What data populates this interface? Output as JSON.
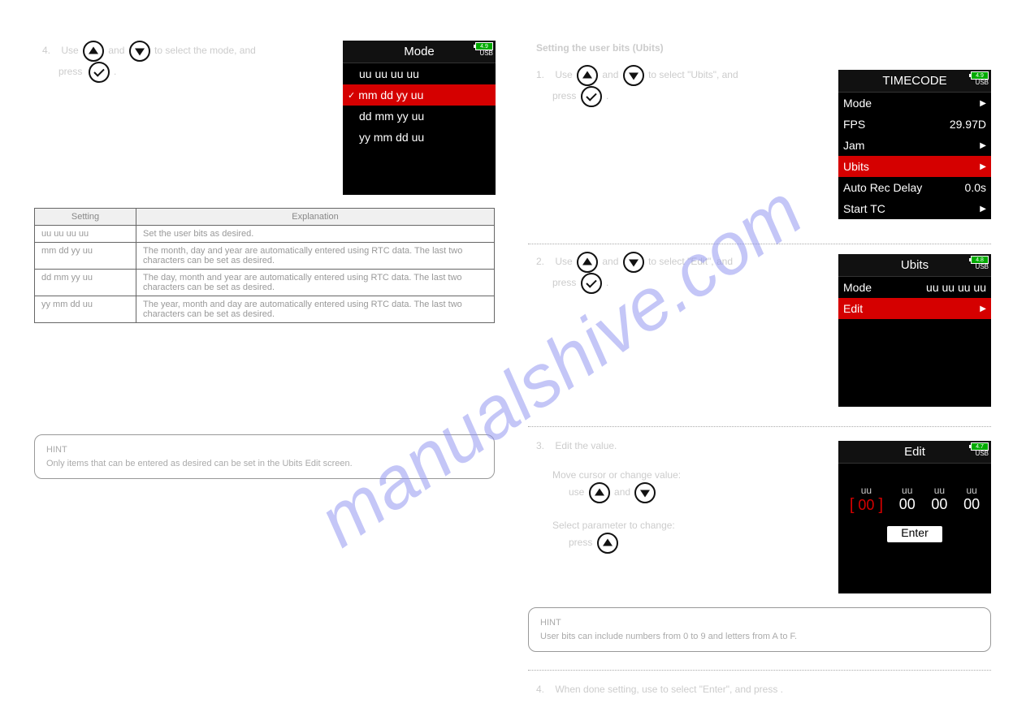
{
  "watermark": "manualshive.com",
  "left": {
    "step4": {
      "prefix": "4.",
      "line1_a": "Use ",
      "line1_b": " and ",
      "line1_c": " to select the mode, and",
      "line2_a": "press ",
      "line2_b": "."
    },
    "lcd_mode": {
      "title": "Mode",
      "battery": "4.9",
      "usb": "USB",
      "items": [
        {
          "label": "uu uu uu uu",
          "selected": false
        },
        {
          "label": "mm dd yy uu",
          "selected": true
        },
        {
          "label": "dd mm yy uu",
          "selected": false
        },
        {
          "label": "yy mm dd uu",
          "selected": false
        }
      ]
    },
    "table": {
      "headers": [
        "Setting",
        "Explanation"
      ],
      "rows": [
        [
          "uu uu uu uu",
          "Set the user bits as desired."
        ],
        [
          "mm dd yy uu",
          "The month, day and year are automatically entered using RTC data. The last two characters can be set as desired."
        ],
        [
          "dd mm yy uu",
          "The day, month and year are automatically entered using RTC data. The last two characters can be set as desired."
        ],
        [
          "yy mm dd uu",
          "The year, month and day are automatically entered using RTC data. The last two characters can be set as desired."
        ]
      ]
    },
    "hint": {
      "label": "HINT",
      "text": "Only items that can be entered as desired can be set in the Ubits Edit screen."
    }
  },
  "right": {
    "section_title": "Setting the user bits (Ubits)",
    "step1": {
      "prefix": "1.",
      "line1_a": "Use ",
      "line1_b": " and ",
      "line1_c": " to select \"Ubits\", and",
      "line2_a": "press ",
      "line2_b": "."
    },
    "lcd_timecode": {
      "title": "TIMECODE",
      "battery": "4.9",
      "usb": "USB",
      "rows": [
        {
          "label": "Mode",
          "value": "",
          "arrow": true,
          "sel": false
        },
        {
          "label": "FPS",
          "value": "29.97D",
          "arrow": false,
          "sel": false
        },
        {
          "label": "Jam",
          "value": "",
          "arrow": true,
          "sel": false
        },
        {
          "label": "Ubits",
          "value": "",
          "arrow": true,
          "sel": true
        },
        {
          "label": "Auto Rec Delay",
          "value": "0.0s",
          "arrow": false,
          "sel": false
        },
        {
          "label": "Start TC",
          "value": "",
          "arrow": true,
          "sel": false
        }
      ]
    },
    "step2": {
      "prefix": "2.",
      "line1_a": "Use ",
      "line1_b": " and ",
      "line1_c": " to select \"Edit\", and",
      "line2_a": "press ",
      "line2_b": "."
    },
    "lcd_ubits": {
      "title": "Ubits",
      "battery": "4.8",
      "usb": "USB",
      "rows": [
        {
          "label": "Mode",
          "value": "uu uu uu uu",
          "arrow": false,
          "sel": false
        },
        {
          "label": "Edit",
          "value": "",
          "arrow": true,
          "sel": true
        }
      ]
    },
    "step3": {
      "prefix": "3.",
      "line1": "Edit the value.",
      "move_a": "Move cursor or change value:",
      "move_b": "use ",
      "move_c": " and ",
      "sel_a": "Select parameter to change:",
      "sel_b": "press "
    },
    "lcd_edit": {
      "title": "Edit",
      "battery": "4.7",
      "usb": "USB",
      "cols": [
        "uu",
        "uu",
        "uu",
        "uu"
      ],
      "vals": [
        "00",
        "00",
        "00",
        "00"
      ],
      "sel_index": 0,
      "enter": "Enter"
    },
    "hint": {
      "label": "HINT",
      "text": "User bits can include numbers from 0 to 9 and letters from A to F."
    },
    "step4": {
      "prefix": "4.",
      "text": "When done setting, use  to select \"Enter\", and press ."
    }
  }
}
